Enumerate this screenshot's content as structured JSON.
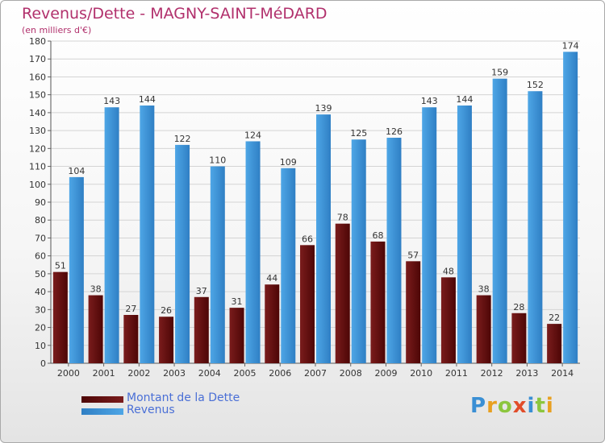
{
  "title": "Revenus/Dette - MAGNY-SAINT-MéDARD",
  "subtitle": "(en milliers d'€)",
  "colors": {
    "debt": "#7a1c1c",
    "debt_dark": "#4d0606",
    "revenue": "#4ea6e6",
    "revenue_dark": "#2f7fc4",
    "title": "#b1306c",
    "legend_text": "#4a6fd6"
  },
  "legend": {
    "debt_label": "Montant de la Dette",
    "revenue_label": "Revenus"
  },
  "logo": {
    "letters": [
      "P",
      "r",
      "o",
      "x",
      "i",
      "t",
      "i"
    ],
    "colors": [
      "#3a8fd4",
      "#e8a020",
      "#8cc63e",
      "#e14d2a",
      "#3a8fd4",
      "#8cc63e",
      "#e8a020"
    ]
  },
  "chart_data": {
    "type": "bar",
    "title": "Revenus/Dette - MAGNY-SAINT-MéDARD",
    "subtitle": "(en milliers d'€)",
    "xlabel": "",
    "ylabel": "",
    "ylim": [
      0,
      180
    ],
    "ytick_step": 10,
    "grid": true,
    "legend_position": "bottom-left",
    "categories": [
      "2000",
      "2001",
      "2002",
      "2003",
      "2004",
      "2005",
      "2006",
      "2007",
      "2008",
      "2009",
      "2010",
      "2011",
      "2012",
      "2013",
      "2014"
    ],
    "series": [
      {
        "name": "Montant de la Dette",
        "values": [
          51,
          38,
          27,
          26,
          37,
          31,
          44,
          66,
          78,
          68,
          57,
          48,
          38,
          28,
          22
        ]
      },
      {
        "name": "Revenus",
        "values": [
          104,
          143,
          144,
          122,
          110,
          124,
          109,
          139,
          125,
          126,
          143,
          144,
          159,
          152,
          174
        ]
      }
    ]
  }
}
